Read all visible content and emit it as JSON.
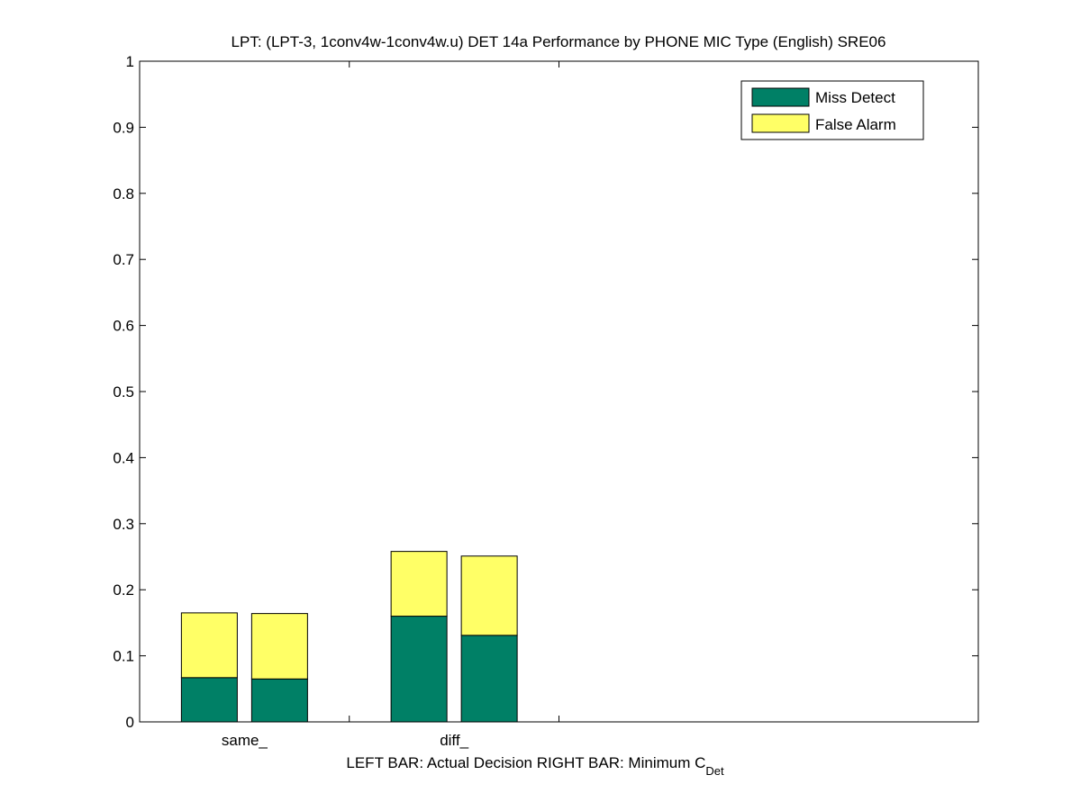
{
  "chart_data": {
    "type": "bar",
    "stacked": true,
    "title": "LPT: (LPT-3, 1conv4w-1conv4w.u) DET 14a Performance by PHONE MIC Type (English) SRE06",
    "xlabel": "LEFT BAR: Actual Decision     RIGHT BAR: Minimum C",
    "xlabel_subscript": "Det",
    "ylabel": "",
    "ylim": [
      0,
      1
    ],
    "yticks": [
      "0",
      "0.1",
      "0.2",
      "0.3",
      "0.4",
      "0.5",
      "0.6",
      "0.7",
      "0.8",
      "0.9",
      "1"
    ],
    "categories": [
      "same_",
      "diff_"
    ],
    "bars_per_category": [
      "Actual Decision",
      "Minimum C_Det"
    ],
    "series": [
      {
        "name": "Miss Detect",
        "color": "#008066",
        "values": [
          [
            0.067,
            0.065
          ],
          [
            0.16,
            0.131
          ]
        ]
      },
      {
        "name": "False Alarm",
        "color": "#ffff66",
        "values": [
          [
            0.098,
            0.099
          ],
          [
            0.098,
            0.12
          ]
        ]
      }
    ],
    "legend_position": "top-right",
    "grid": false
  }
}
